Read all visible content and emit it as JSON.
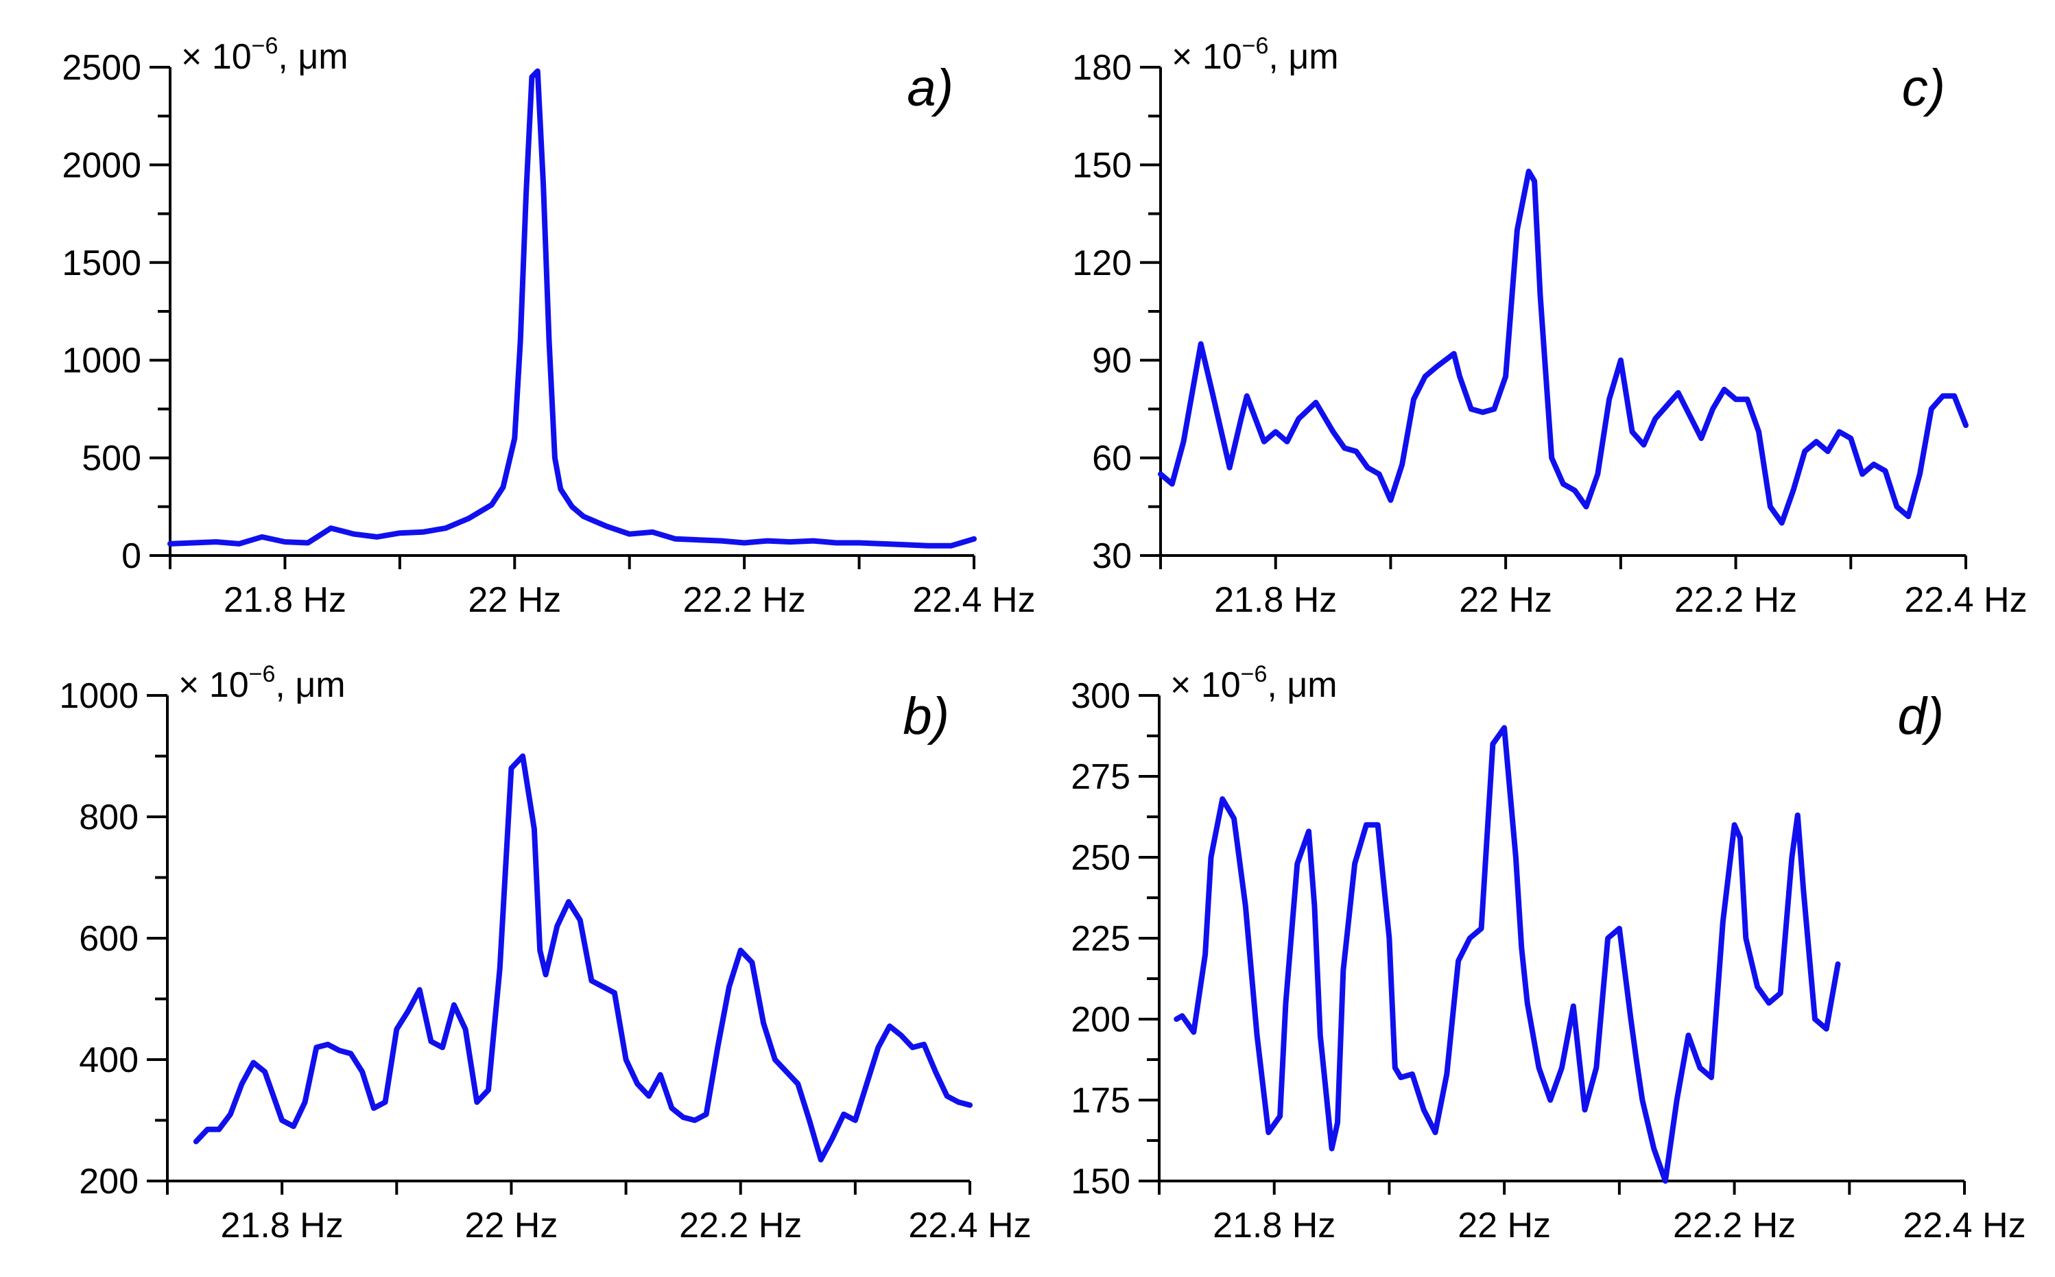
{
  "chart_data": [
    {
      "id": "a",
      "type": "line",
      "panel_label": "a)",
      "unit_label": {
        "prefix": "× 10",
        "exponent": "−6",
        "suffix": ", μm"
      },
      "line_color": "#1010EE",
      "xlim": [
        21.7,
        22.4
      ],
      "ylim": [
        0,
        2500
      ],
      "x_ticks": [
        21.7,
        21.8,
        21.9,
        22.0,
        22.1,
        22.2,
        22.3,
        22.4
      ],
      "x_tick_labels": [
        {
          "value": 21.8,
          "label": "21.8 Hz"
        },
        {
          "value": 22.0,
          "label": "22 Hz"
        },
        {
          "value": 22.2,
          "label": "22.2 Hz"
        },
        {
          "value": 22.4,
          "label": "22.4 Hz"
        }
      ],
      "y_major_ticks": [
        0,
        500,
        1000,
        1500,
        2000,
        2500
      ],
      "y_tick_labels": [
        {
          "value": 0,
          "label": "0"
        },
        {
          "value": 500,
          "label": "500"
        },
        {
          "value": 1000,
          "label": "1000"
        },
        {
          "value": 1500,
          "label": "1500"
        },
        {
          "value": 2000,
          "label": "2000"
        },
        {
          "value": 2500,
          "label": "2500"
        }
      ],
      "y_minor_step": 250,
      "x": [
        21.7,
        21.72,
        21.74,
        21.76,
        21.78,
        21.8,
        21.82,
        21.84,
        21.86,
        21.88,
        21.9,
        21.92,
        21.94,
        21.96,
        21.98,
        21.99,
        22.0,
        22.005,
        22.01,
        22.015,
        22.02,
        22.025,
        22.03,
        22.035,
        22.04,
        22.05,
        22.06,
        22.08,
        22.1,
        22.12,
        22.14,
        22.16,
        22.18,
        22.2,
        22.22,
        22.24,
        22.26,
        22.28,
        22.3,
        22.32,
        22.34,
        22.36,
        22.38,
        22.4
      ],
      "y": [
        60,
        65,
        70,
        60,
        95,
        70,
        65,
        140,
        110,
        95,
        115,
        120,
        140,
        190,
        260,
        350,
        600,
        1100,
        1850,
        2450,
        2480,
        1900,
        1100,
        500,
        340,
        250,
        200,
        150,
        110,
        120,
        85,
        80,
        75,
        65,
        75,
        70,
        75,
        65,
        65,
        60,
        55,
        50,
        50,
        85
      ]
    },
    {
      "id": "b",
      "type": "line",
      "panel_label": "b)",
      "unit_label": {
        "prefix": "× 10",
        "exponent": "−6",
        "suffix": ", μm"
      },
      "line_color": "#1010EE",
      "xlim": [
        21.7,
        22.4
      ],
      "ylim": [
        200,
        1000
      ],
      "x_ticks": [
        21.7,
        21.8,
        21.9,
        22.0,
        22.1,
        22.2,
        22.3,
        22.4
      ],
      "x_tick_labels": [
        {
          "value": 21.8,
          "label": "21.8 Hz"
        },
        {
          "value": 22.0,
          "label": "22 Hz"
        },
        {
          "value": 22.2,
          "label": "22.2 Hz"
        },
        {
          "value": 22.4,
          "label": "22.4 Hz"
        }
      ],
      "y_major_ticks": [
        200,
        400,
        600,
        800,
        1000
      ],
      "y_tick_labels": [
        {
          "value": 200,
          "label": "200"
        },
        {
          "value": 400,
          "label": "400"
        },
        {
          "value": 600,
          "label": "600"
        },
        {
          "value": 800,
          "label": "800"
        },
        {
          "value": 1000,
          "label": "1000"
        }
      ],
      "y_minor_step": 100,
      "x": [
        21.725,
        21.735,
        21.745,
        21.755,
        21.765,
        21.775,
        21.785,
        21.8,
        21.81,
        21.82,
        21.83,
        21.84,
        21.85,
        21.86,
        21.87,
        21.88,
        21.89,
        21.9,
        21.91,
        21.92,
        21.93,
        21.94,
        21.95,
        21.96,
        21.97,
        21.98,
        21.99,
        22.0,
        22.01,
        22.02,
        22.025,
        22.03,
        22.04,
        22.05,
        22.06,
        22.07,
        22.08,
        22.09,
        22.1,
        22.11,
        22.12,
        22.13,
        22.14,
        22.15,
        22.16,
        22.17,
        22.18,
        22.19,
        22.2,
        22.21,
        22.22,
        22.23,
        22.24,
        22.25,
        22.26,
        22.27,
        22.28,
        22.29,
        22.3,
        22.31,
        22.32,
        22.33,
        22.34,
        22.35,
        22.36,
        22.37,
        22.38,
        22.39,
        22.4
      ],
      "y": [
        265,
        285,
        285,
        310,
        360,
        395,
        380,
        300,
        290,
        330,
        420,
        425,
        415,
        410,
        380,
        320,
        330,
        450,
        480,
        515,
        430,
        420,
        490,
        450,
        330,
        350,
        550,
        880,
        900,
        780,
        580,
        540,
        620,
        660,
        630,
        530,
        520,
        510,
        400,
        360,
        340,
        375,
        320,
        305,
        300,
        310,
        420,
        520,
        580,
        560,
        460,
        400,
        380,
        360,
        300,
        235,
        270,
        310,
        300,
        360,
        420,
        455,
        440,
        420,
        425,
        380,
        340,
        330,
        325
      ]
    },
    {
      "id": "c",
      "type": "line",
      "panel_label": "c)",
      "unit_label": {
        "prefix": "× 10",
        "exponent": "−6",
        "suffix": ", μm"
      },
      "line_color": "#1010EE",
      "xlim": [
        21.7,
        22.4
      ],
      "ylim": [
        30,
        180
      ],
      "x_ticks": [
        21.7,
        21.8,
        21.9,
        22.0,
        22.1,
        22.2,
        22.3,
        22.4
      ],
      "x_tick_labels": [
        {
          "value": 21.8,
          "label": "21.8 Hz"
        },
        {
          "value": 22.0,
          "label": "22 Hz"
        },
        {
          "value": 22.2,
          "label": "22.2 Hz"
        },
        {
          "value": 22.4,
          "label": "22.4 Hz"
        }
      ],
      "y_major_ticks": [
        30,
        60,
        90,
        120,
        150,
        180
      ],
      "y_tick_labels": [
        {
          "value": 30,
          "label": "30"
        },
        {
          "value": 60,
          "label": "60"
        },
        {
          "value": 90,
          "label": "90"
        },
        {
          "value": 120,
          "label": "120"
        },
        {
          "value": 150,
          "label": "150"
        },
        {
          "value": 180,
          "label": "180"
        }
      ],
      "y_minor_step": 15,
      "x": [
        21.7,
        21.71,
        21.72,
        21.735,
        21.745,
        21.76,
        21.77,
        21.775,
        21.79,
        21.8,
        21.81,
        21.82,
        21.835,
        21.85,
        21.86,
        21.87,
        21.88,
        21.89,
        21.9,
        21.91,
        21.92,
        21.93,
        21.94,
        21.955,
        21.96,
        21.97,
        21.98,
        21.99,
        22.0,
        22.01,
        22.02,
        22.025,
        22.03,
        22.04,
        22.05,
        22.06,
        22.07,
        22.08,
        22.09,
        22.1,
        22.11,
        22.12,
        22.13,
        22.15,
        22.16,
        22.17,
        22.18,
        22.19,
        22.2,
        22.21,
        22.22,
        22.23,
        22.24,
        22.25,
        22.26,
        22.27,
        22.28,
        22.29,
        22.3,
        22.31,
        22.32,
        22.33,
        22.34,
        22.35,
        22.36,
        22.37,
        22.38,
        22.39,
        22.4
      ],
      "y": [
        55,
        52,
        65,
        95,
        80,
        57,
        72,
        79,
        65,
        68,
        65,
        72,
        77,
        68,
        63,
        62,
        57,
        55,
        47,
        58,
        78,
        85,
        88,
        92,
        85,
        75,
        74,
        75,
        85,
        130,
        148,
        145,
        110,
        60,
        52,
        50,
        45,
        55,
        78,
        90,
        68,
        64,
        72,
        80,
        73,
        66,
        75,
        81,
        78,
        78,
        68,
        45,
        40,
        50,
        62,
        65,
        62,
        68,
        66,
        55,
        58,
        56,
        45,
        42,
        55,
        75,
        79,
        79,
        70
      ]
    },
    {
      "id": "d",
      "type": "line",
      "panel_label": "d)",
      "unit_label": {
        "prefix": "× 10",
        "exponent": "−6",
        "suffix": ", μm"
      },
      "line_color": "#1010EE",
      "xlim": [
        21.7,
        22.4
      ],
      "ylim": [
        150,
        300
      ],
      "x_ticks": [
        21.7,
        21.8,
        21.9,
        22.0,
        22.1,
        22.2,
        22.3,
        22.4
      ],
      "x_tick_labels": [
        {
          "value": 21.8,
          "label": "21.8 Hz"
        },
        {
          "value": 22.0,
          "label": "22 Hz"
        },
        {
          "value": 22.2,
          "label": "22.2 Hz"
        },
        {
          "value": 22.4,
          "label": "22.4 Hz"
        }
      ],
      "y_major_ticks": [
        150,
        175,
        200,
        225,
        250,
        275,
        300
      ],
      "y_tick_labels": [
        {
          "value": 150,
          "label": "150"
        },
        {
          "value": 175,
          "label": "175"
        },
        {
          "value": 200,
          "label": "200"
        },
        {
          "value": 225,
          "label": "225"
        },
        {
          "value": 250,
          "label": "250"
        },
        {
          "value": 275,
          "label": "275"
        },
        {
          "value": 300,
          "label": "300"
        }
      ],
      "y_minor_step": 12.5,
      "x": [
        21.715,
        21.72,
        21.73,
        21.74,
        21.745,
        21.755,
        21.765,
        21.775,
        21.785,
        21.795,
        21.805,
        21.81,
        21.82,
        21.83,
        21.835,
        21.84,
        21.85,
        21.855,
        21.86,
        21.87,
        21.88,
        21.89,
        21.9,
        21.905,
        21.91,
        21.92,
        21.93,
        21.94,
        21.95,
        21.96,
        21.97,
        21.98,
        21.99,
        22.0,
        22.01,
        22.015,
        22.02,
        22.03,
        22.04,
        22.05,
        22.06,
        22.07,
        22.08,
        22.09,
        22.1,
        22.11,
        22.115,
        22.12,
        22.13,
        22.14,
        22.15,
        22.16,
        22.17,
        22.18,
        22.19,
        22.2,
        22.205,
        22.21,
        22.22,
        22.23,
        22.24,
        22.25,
        22.255,
        22.26,
        22.27,
        22.28,
        22.29
      ],
      "y": [
        200,
        201,
        196,
        220,
        250,
        268,
        262,
        235,
        195,
        165,
        170,
        205,
        248,
        258,
        235,
        195,
        160,
        168,
        215,
        248,
        260,
        260,
        225,
        185,
        182,
        183,
        172,
        165,
        183,
        218,
        225,
        228,
        285,
        290,
        250,
        222,
        205,
        185,
        175,
        185,
        204,
        172,
        185,
        225,
        228,
        200,
        187,
        175,
        160,
        150,
        175,
        195,
        185,
        182,
        230,
        260,
        256,
        225,
        210,
        205,
        208,
        250,
        263,
        240,
        200,
        197,
        217
      ]
    }
  ]
}
